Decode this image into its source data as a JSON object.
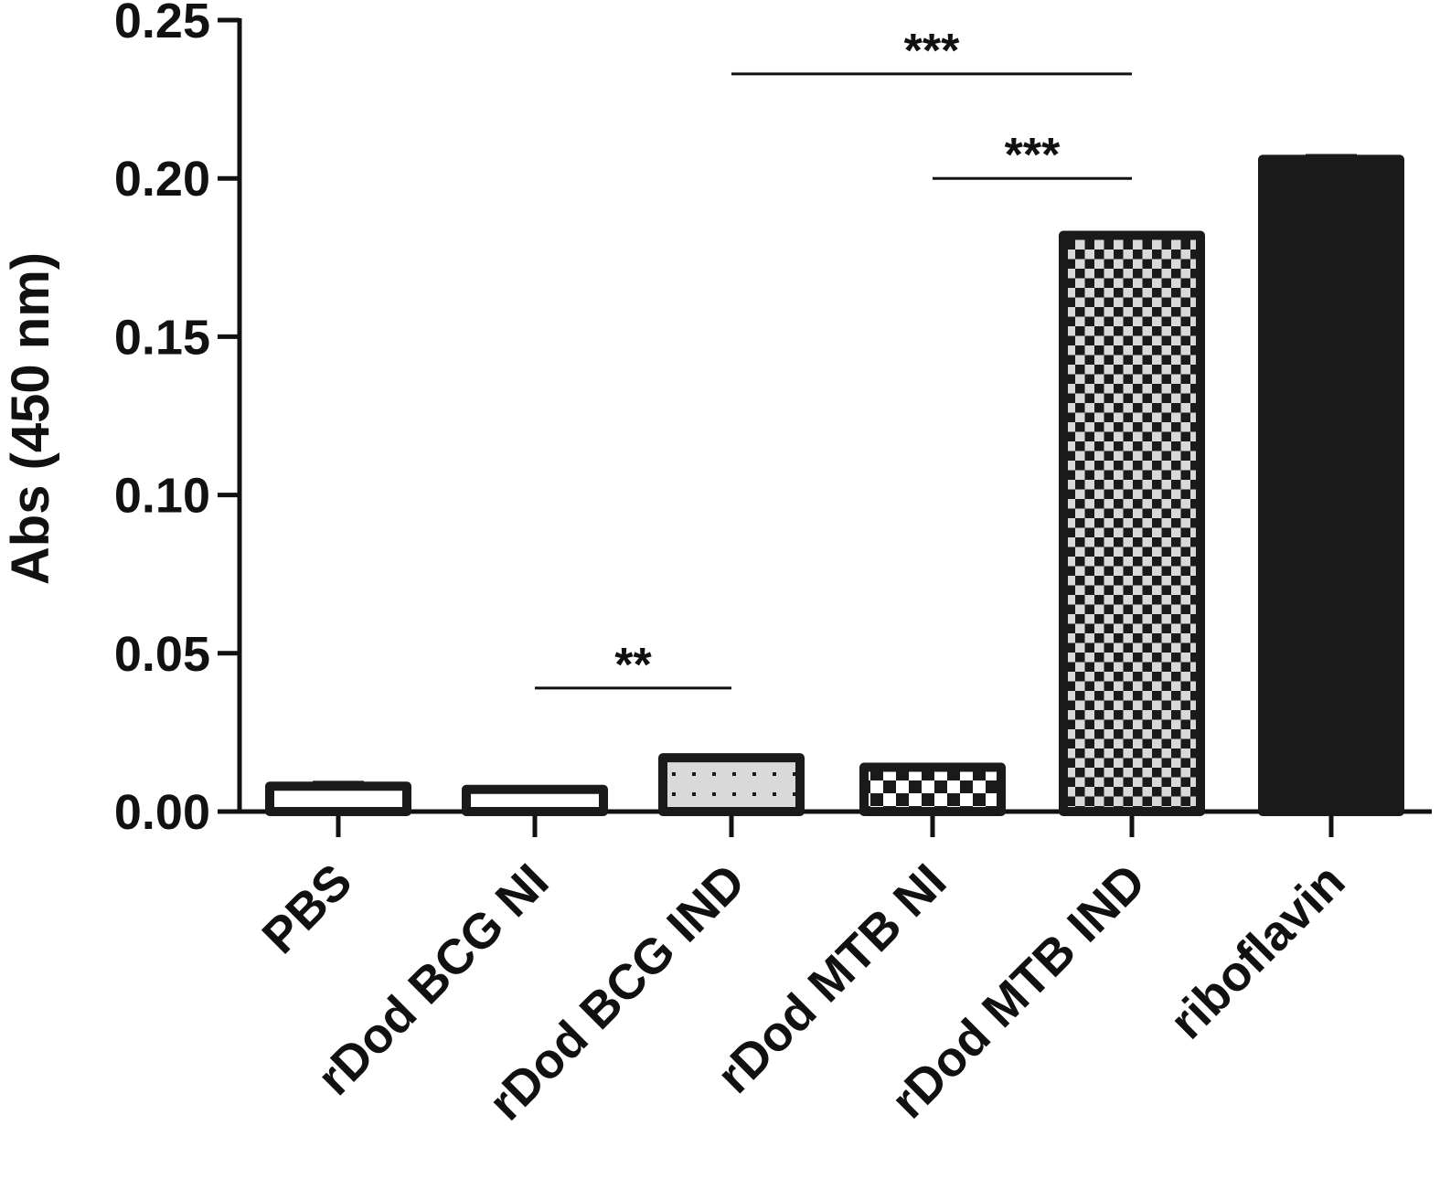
{
  "chart_data": {
    "type": "bar",
    "title": "",
    "xlabel": "",
    "ylabel": "Abs (450 nm)",
    "ylim": [
      0,
      0.25
    ],
    "yticks": [
      "0.00",
      "0.05",
      "0.10",
      "0.15",
      "0.20",
      "0.25"
    ],
    "tick_values": [
      0,
      0.05,
      0.1,
      0.15,
      0.2,
      0.25
    ],
    "categories": [
      "PBS",
      "rDod BCG NI",
      "rDod BCG IND",
      "rDod MTB NI",
      "rDod MTB IND",
      "riboflavin"
    ],
    "values": [
      0.008,
      0.007,
      0.017,
      0.014,
      0.182,
      0.206
    ],
    "errors": [
      0.001,
      0.0005,
      0.0003,
      0.0003,
      0.0003,
      0.001
    ],
    "patterns": [
      "empty",
      "empty",
      "dots",
      "checker-coarse",
      "checker-fine",
      "solid"
    ],
    "significance": [
      {
        "from": "rDod BCG NI",
        "to": "rDod BCG IND",
        "label": "**",
        "y": 0.039
      },
      {
        "from": "rDod BCG IND",
        "to": "rDod MTB IND",
        "label": "***",
        "y": 0.233
      },
      {
        "from": "rDod MTB NI",
        "to": "rDod MTB IND",
        "label": "***",
        "y": 0.2
      }
    ],
    "grid": false,
    "legend": "none",
    "colors": {
      "axis": "#111111",
      "bar_edge": "#1a1a1a",
      "fill_light": "#d9d9d9",
      "fill_solid": "#1a1a1a"
    }
  }
}
